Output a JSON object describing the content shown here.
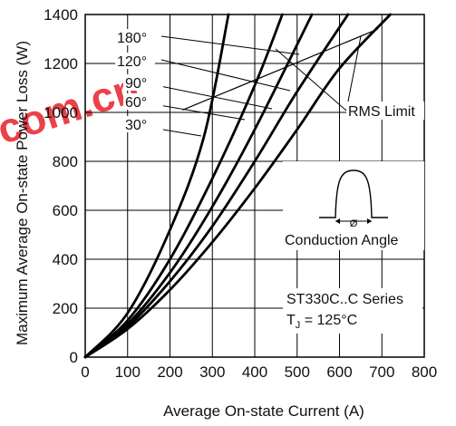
{
  "chart_data": {
    "type": "line",
    "title": "",
    "xlabel": "Average On-state Current (A)",
    "ylabel": "Maximum Average On-state Power Loss (W)",
    "xlim": [
      0,
      800
    ],
    "ylim": [
      0,
      1400
    ],
    "x_ticks": [
      "0",
      "100",
      "200",
      "300",
      "400",
      "500",
      "600",
      "700",
      "800"
    ],
    "y_ticks": [
      "0",
      "200",
      "400",
      "600",
      "800",
      "1000",
      "1200",
      "1400"
    ],
    "grid": true,
    "series": [
      {
        "name": "180°",
        "points": [
          [
            0,
            0
          ],
          [
            100,
            115
          ],
          [
            200,
            275
          ],
          [
            300,
            470
          ],
          [
            400,
            690
          ],
          [
            500,
            930
          ],
          [
            600,
            1180
          ],
          [
            720,
            1400
          ]
        ]
      },
      {
        "name": "120°",
        "points": [
          [
            0,
            0
          ],
          [
            100,
            125
          ],
          [
            200,
            310
          ],
          [
            300,
            535
          ],
          [
            400,
            800
          ],
          [
            500,
            1085
          ],
          [
            620,
            1400
          ]
        ]
      },
      {
        "name": "90°",
        "points": [
          [
            0,
            0
          ],
          [
            100,
            135
          ],
          [
            200,
            345
          ],
          [
            300,
            615
          ],
          [
            400,
            930
          ],
          [
            535,
            1400
          ]
        ]
      },
      {
        "name": "60°",
        "points": [
          [
            0,
            0
          ],
          [
            100,
            150
          ],
          [
            200,
            400
          ],
          [
            300,
            730
          ],
          [
            400,
            1110
          ],
          [
            465,
            1400
          ]
        ]
      },
      {
        "name": "30°",
        "points": [
          [
            0,
            0
          ],
          [
            100,
            180
          ],
          [
            200,
            520
          ],
          [
            280,
            900
          ],
          [
            338,
            1400
          ]
        ]
      }
    ],
    "rms_limit": [
      [
        230,
        1010
      ],
      [
        690,
        1340
      ]
    ],
    "annotations": {
      "angle_labels": [
        "180°",
        "120°",
        "90°",
        "60°",
        "30°"
      ],
      "rms_label": "RMS Limit",
      "conduction_symbol": "Ø",
      "conduction_label": "Conduction Angle",
      "series_label": "ST330C..C Series",
      "tj_prefix": "T",
      "tj_sub": "J",
      "tj_suffix": " = 125°C"
    }
  },
  "watermark": {
    "text": "com.cn",
    "color": "#e8202a"
  }
}
